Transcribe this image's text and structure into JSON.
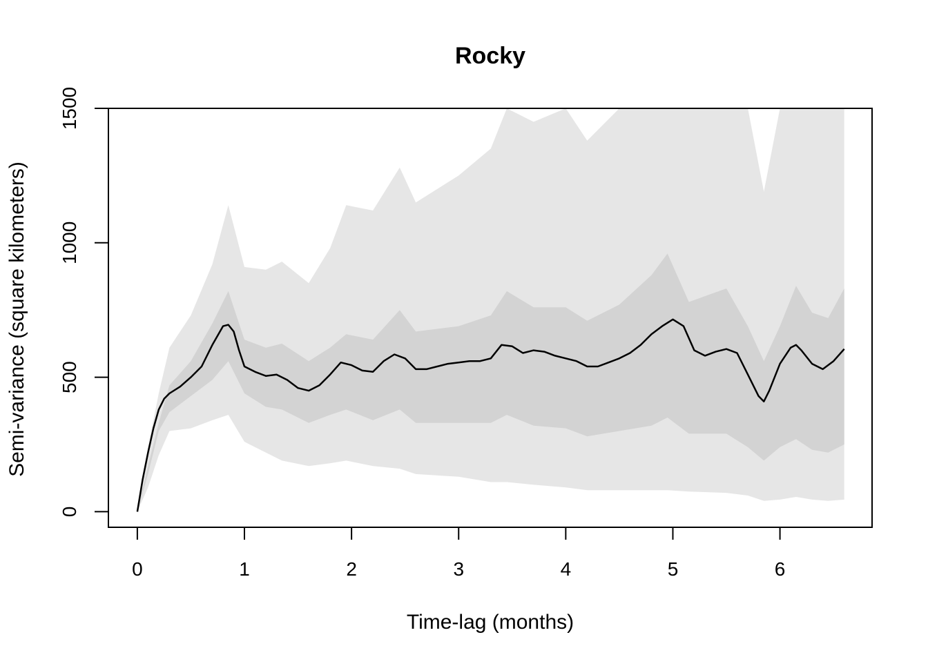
{
  "chart_data": {
    "type": "line",
    "title": "Rocky",
    "xlabel": "Time-lag (months)",
    "ylabel": "Semi-variance (square kilometers)",
    "xlim": [
      -0.27,
      6.86
    ],
    "ylim": [
      -58,
      1500
    ],
    "x_ticks": [
      0,
      1,
      2,
      3,
      4,
      5,
      6
    ],
    "y_ticks": [
      0,
      500,
      1000,
      1500
    ],
    "grid": false,
    "legend": "none",
    "colors": {
      "line": "#000000",
      "inner_band": "#d3d3d3",
      "outer_band": "#e6e6e6",
      "axis": "#000000"
    },
    "series": [
      {
        "x": [
          0.0,
          0.05,
          0.1,
          0.15,
          0.2,
          0.25,
          0.3,
          0.4,
          0.5,
          0.6,
          0.7,
          0.8,
          0.85,
          0.9,
          0.95,
          1.0,
          1.1,
          1.2,
          1.3,
          1.4,
          1.5,
          1.6,
          1.7,
          1.8,
          1.9,
          2.0,
          2.1,
          2.2,
          2.3,
          2.4,
          2.5,
          2.6,
          2.7,
          2.8,
          2.9,
          3.0,
          3.1,
          3.2,
          3.3,
          3.4,
          3.5,
          3.6,
          3.7,
          3.8,
          3.9,
          4.0,
          4.1,
          4.2,
          4.3,
          4.4,
          4.5,
          4.6,
          4.7,
          4.8,
          4.9,
          5.0,
          5.1,
          5.2,
          5.3,
          5.4,
          5.5,
          5.6,
          5.7,
          5.8,
          5.85,
          5.9,
          6.0,
          6.1,
          6.15,
          6.2,
          6.3,
          6.4,
          6.5,
          6.6
        ],
        "y": [
          0,
          120,
          220,
          310,
          380,
          420,
          440,
          465,
          500,
          540,
          620,
          690,
          695,
          670,
          600,
          540,
          520,
          505,
          510,
          490,
          460,
          450,
          470,
          510,
          555,
          545,
          525,
          520,
          560,
          585,
          570,
          530,
          530,
          540,
          550,
          555,
          560,
          560,
          570,
          620,
          615,
          590,
          600,
          595,
          580,
          570,
          560,
          540,
          540,
          555,
          570,
          590,
          620,
          660,
          690,
          715,
          690,
          600,
          580,
          595,
          605,
          590,
          510,
          430,
          410,
          450,
          550,
          610,
          620,
          600,
          550,
          530,
          560,
          605
        ]
      }
    ],
    "inner_band": {
      "x": [
        0.0,
        0.1,
        0.2,
        0.3,
        0.5,
        0.7,
        0.85,
        1.0,
        1.2,
        1.35,
        1.6,
        1.8,
        1.95,
        2.2,
        2.45,
        2.6,
        3.0,
        3.3,
        3.45,
        3.7,
        4.0,
        4.2,
        4.5,
        4.8,
        4.95,
        5.15,
        5.5,
        5.7,
        5.85,
        6.0,
        6.15,
        6.3,
        6.45,
        6.6
      ],
      "upper": [
        0,
        170,
        330,
        470,
        560,
        700,
        820,
        640,
        610,
        625,
        560,
        610,
        660,
        640,
        750,
        670,
        690,
        730,
        820,
        760,
        760,
        710,
        770,
        880,
        960,
        780,
        830,
        690,
        560,
        690,
        840,
        740,
        720,
        830
      ],
      "lower": [
        0,
        140,
        300,
        370,
        430,
        490,
        560,
        440,
        390,
        380,
        330,
        360,
        380,
        340,
        380,
        330,
        330,
        330,
        360,
        320,
        310,
        280,
        300,
        320,
        350,
        290,
        290,
        240,
        190,
        240,
        270,
        230,
        220,
        250
      ]
    },
    "outer_band": {
      "x": [
        0.0,
        0.1,
        0.2,
        0.3,
        0.5,
        0.7,
        0.85,
        1.0,
        1.2,
        1.35,
        1.6,
        1.8,
        1.95,
        2.2,
        2.45,
        2.6,
        3.0,
        3.3,
        3.45,
        3.7,
        4.0,
        4.2,
        4.5,
        4.8,
        4.95,
        5.15,
        5.5,
        5.7,
        5.85,
        6.0,
        6.15,
        6.3,
        6.45,
        6.6
      ],
      "upper": [
        0,
        240,
        440,
        610,
        730,
        920,
        1140,
        910,
        900,
        930,
        850,
        980,
        1140,
        1120,
        1280,
        1150,
        1250,
        1350,
        1500,
        1450,
        1500,
        1380,
        1500,
        1500,
        1500,
        1500,
        1500,
        1500,
        1190,
        1500,
        1500,
        1500,
        1500,
        1500
      ],
      "lower": [
        0,
        90,
        210,
        300,
        310,
        340,
        360,
        260,
        220,
        190,
        170,
        180,
        190,
        170,
        160,
        140,
        130,
        110,
        110,
        100,
        90,
        80,
        80,
        80,
        80,
        75,
        70,
        60,
        40,
        45,
        55,
        45,
        40,
        45
      ]
    }
  }
}
